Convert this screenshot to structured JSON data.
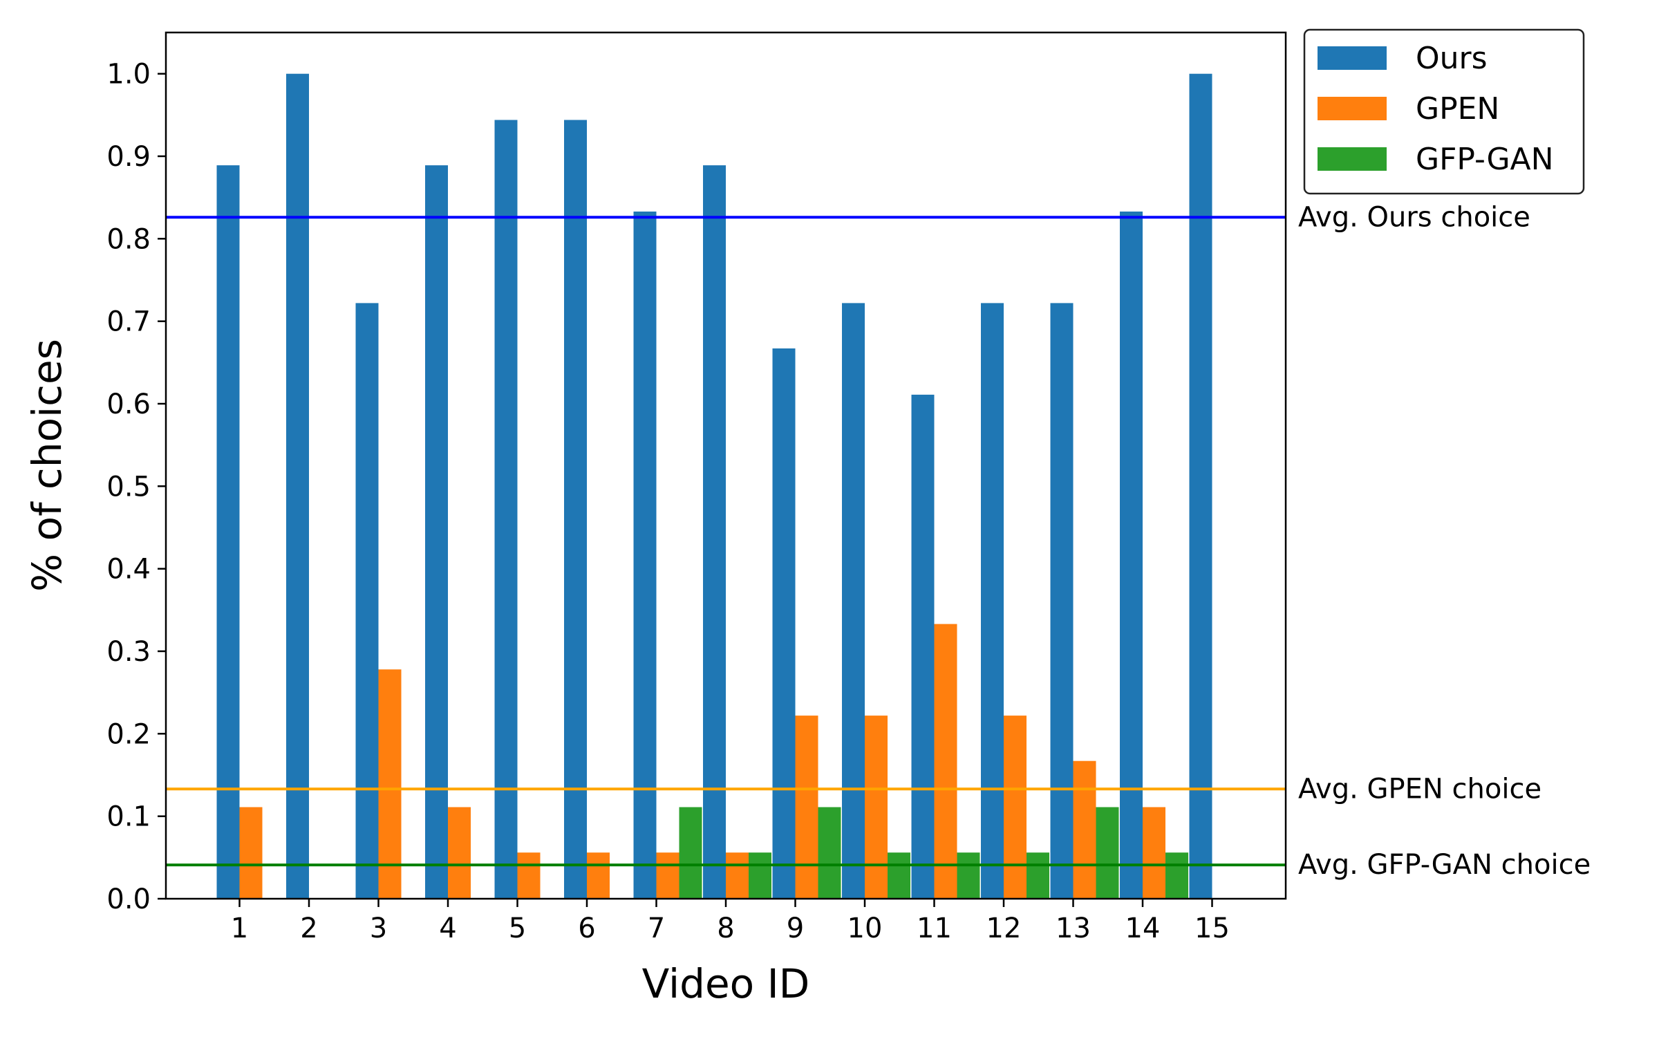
{
  "chart_data": {
    "type": "bar",
    "xlabel": "Video ID",
    "ylabel": "% of choices",
    "categories": [
      "1",
      "2",
      "3",
      "4",
      "5",
      "6",
      "7",
      "8",
      "9",
      "10",
      "11",
      "12",
      "13",
      "14",
      "15"
    ],
    "ylim": [
      0,
      1.05
    ],
    "yticks": [
      "0.0",
      "0.1",
      "0.2",
      "0.3",
      "0.4",
      "0.5",
      "0.6",
      "0.7",
      "0.8",
      "0.9",
      "1.0"
    ],
    "series": [
      {
        "name": "Ours",
        "color": "#1f77b4",
        "values": [
          0.889,
          1.0,
          0.722,
          0.889,
          0.944,
          0.944,
          0.833,
          0.889,
          0.667,
          0.722,
          0.611,
          0.722,
          0.722,
          0.833,
          1.0
        ]
      },
      {
        "name": "GPEN",
        "color": "#ff7f0e",
        "values": [
          0.111,
          0.0,
          0.278,
          0.111,
          0.056,
          0.056,
          0.056,
          0.056,
          0.222,
          0.222,
          0.333,
          0.222,
          0.167,
          0.111,
          0.0
        ]
      },
      {
        "name": "GFP-GAN",
        "color": "#2ca02c",
        "values": [
          0.0,
          0.0,
          0.0,
          0.0,
          0.0,
          0.0,
          0.111,
          0.056,
          0.111,
          0.056,
          0.056,
          0.056,
          0.111,
          0.056,
          0.0
        ]
      }
    ],
    "reference_lines": [
      {
        "label": "Avg. Ours choice",
        "value": 0.826,
        "color": "#0000ff"
      },
      {
        "label": "Avg. GPEN choice",
        "value": 0.133,
        "color": "#ffa500"
      },
      {
        "label": "Avg. GFP-GAN choice",
        "value": 0.041,
        "color": "#008000"
      }
    ],
    "legend_position": "outside-top-right",
    "grid": false
  }
}
